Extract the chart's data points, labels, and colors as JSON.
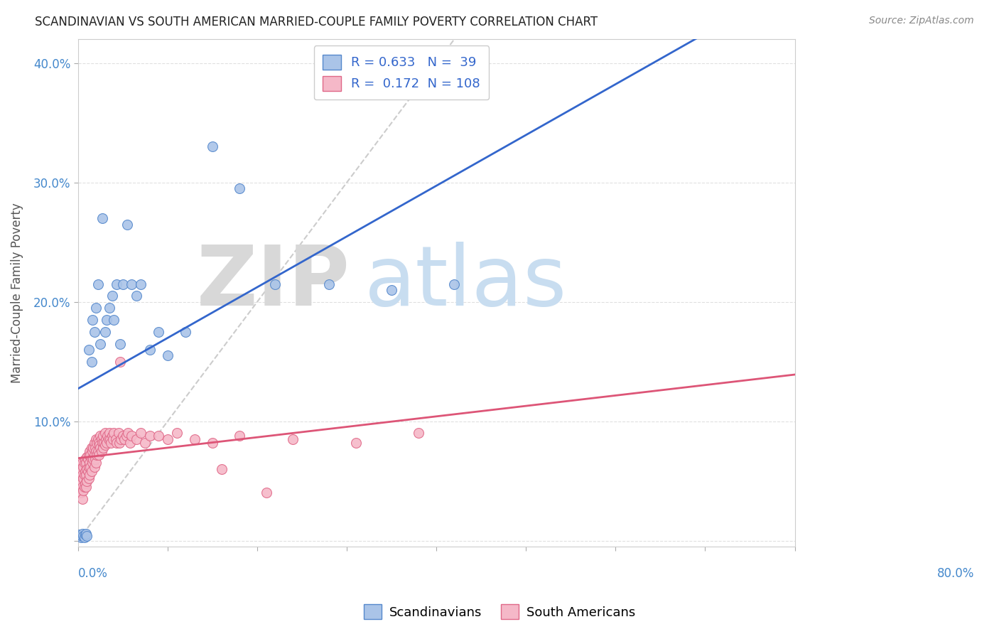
{
  "title": "SCANDINAVIAN VS SOUTH AMERICAN MARRIED-COUPLE FAMILY POVERTY CORRELATION CHART",
  "source": "Source: ZipAtlas.com",
  "ylabel": "Married-Couple Family Poverty",
  "xlim": [
    0,
    0.8
  ],
  "ylim": [
    -0.005,
    0.42
  ],
  "yticks": [
    0.0,
    0.1,
    0.2,
    0.3,
    0.4
  ],
  "ytick_labels": [
    "",
    "10.0%",
    "20.0%",
    "30.0%",
    "40.0%"
  ],
  "xticks": [
    0.0,
    0.1,
    0.2,
    0.3,
    0.4,
    0.5,
    0.6,
    0.7,
    0.8
  ],
  "legend_r_blue": "0.633",
  "legend_n_blue": "39",
  "legend_r_pink": "0.172",
  "legend_n_pink": "108",
  "blue_fill": "#aac4e8",
  "pink_fill": "#f5b8c8",
  "blue_edge": "#5588cc",
  "pink_edge": "#e06888",
  "blue_line": "#3366cc",
  "pink_line": "#dd5577",
  "diagonal_color": "#cccccc",
  "title_color": "#222222",
  "axis_tick_color": "#4488cc",
  "legend_text_color": "#3366cc",
  "grid_color": "#e0e0e0",
  "background_color": "#ffffff",
  "watermark_zip_color": "#d8d8d8",
  "watermark_atlas_color": "#c8ddf0",
  "scandinavian_x": [
    0.002,
    0.003,
    0.004,
    0.005,
    0.006,
    0.007,
    0.008,
    0.009,
    0.01,
    0.012,
    0.015,
    0.016,
    0.018,
    0.02,
    0.022,
    0.025,
    0.027,
    0.03,
    0.032,
    0.035,
    0.038,
    0.04,
    0.043,
    0.047,
    0.05,
    0.055,
    0.06,
    0.065,
    0.07,
    0.08,
    0.09,
    0.1,
    0.12,
    0.15,
    0.18,
    0.22,
    0.28,
    0.35,
    0.42
  ],
  "scandinavian_y": [
    0.005,
    0.003,
    0.004,
    0.006,
    0.004,
    0.003,
    0.005,
    0.006,
    0.004,
    0.16,
    0.15,
    0.185,
    0.175,
    0.195,
    0.215,
    0.165,
    0.27,
    0.175,
    0.185,
    0.195,
    0.205,
    0.185,
    0.215,
    0.165,
    0.215,
    0.265,
    0.215,
    0.205,
    0.215,
    0.16,
    0.175,
    0.155,
    0.175,
    0.33,
    0.295,
    0.215,
    0.215,
    0.21,
    0.215
  ],
  "southamerican_x": [
    0.001,
    0.001,
    0.002,
    0.002,
    0.002,
    0.003,
    0.003,
    0.003,
    0.004,
    0.004,
    0.005,
    0.005,
    0.005,
    0.005,
    0.006,
    0.006,
    0.006,
    0.007,
    0.007,
    0.007,
    0.008,
    0.008,
    0.008,
    0.009,
    0.009,
    0.009,
    0.01,
    0.01,
    0.01,
    0.011,
    0.011,
    0.012,
    0.012,
    0.012,
    0.013,
    0.013,
    0.013,
    0.014,
    0.014,
    0.015,
    0.015,
    0.015,
    0.016,
    0.016,
    0.017,
    0.017,
    0.018,
    0.018,
    0.018,
    0.019,
    0.019,
    0.02,
    0.02,
    0.02,
    0.021,
    0.021,
    0.022,
    0.022,
    0.023,
    0.023,
    0.024,
    0.025,
    0.025,
    0.026,
    0.026,
    0.027,
    0.028,
    0.028,
    0.029,
    0.03,
    0.03,
    0.031,
    0.032,
    0.033,
    0.034,
    0.035,
    0.036,
    0.037,
    0.038,
    0.039,
    0.04,
    0.042,
    0.043,
    0.045,
    0.046,
    0.047,
    0.048,
    0.05,
    0.052,
    0.054,
    0.056,
    0.058,
    0.06,
    0.065,
    0.07,
    0.075,
    0.08,
    0.09,
    0.1,
    0.11,
    0.13,
    0.15,
    0.16,
    0.18,
    0.21,
    0.24,
    0.31,
    0.38
  ],
  "southamerican_y": [
    0.06,
    0.05,
    0.065,
    0.055,
    0.045,
    0.06,
    0.05,
    0.04,
    0.058,
    0.048,
    0.065,
    0.055,
    0.045,
    0.035,
    0.062,
    0.052,
    0.042,
    0.065,
    0.055,
    0.045,
    0.068,
    0.058,
    0.048,
    0.065,
    0.055,
    0.045,
    0.07,
    0.06,
    0.05,
    0.068,
    0.058,
    0.072,
    0.062,
    0.052,
    0.075,
    0.065,
    0.055,
    0.072,
    0.062,
    0.078,
    0.068,
    0.058,
    0.075,
    0.065,
    0.078,
    0.068,
    0.082,
    0.072,
    0.062,
    0.078,
    0.068,
    0.085,
    0.075,
    0.065,
    0.082,
    0.072,
    0.085,
    0.075,
    0.082,
    0.072,
    0.08,
    0.088,
    0.078,
    0.085,
    0.075,
    0.082,
    0.088,
    0.078,
    0.082,
    0.09,
    0.08,
    0.085,
    0.082,
    0.088,
    0.085,
    0.09,
    0.085,
    0.082,
    0.088,
    0.085,
    0.09,
    0.085,
    0.082,
    0.09,
    0.082,
    0.15,
    0.085,
    0.088,
    0.085,
    0.088,
    0.09,
    0.082,
    0.088,
    0.085,
    0.09,
    0.082,
    0.088,
    0.088,
    0.085,
    0.09,
    0.085,
    0.082,
    0.06,
    0.088,
    0.04,
    0.085,
    0.082,
    0.09
  ]
}
